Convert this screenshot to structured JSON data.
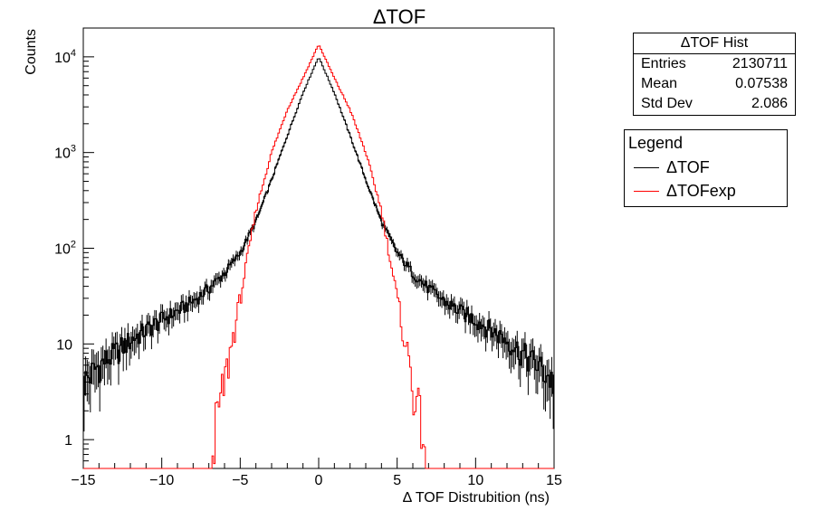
{
  "chart_data": {
    "type": "histogram",
    "title": "ΔTOF",
    "xlabel": "Δ TOF Distrubition (ns)",
    "ylabel": "Counts",
    "xlim": [
      -15,
      15
    ],
    "ylim": [
      0.5,
      20000
    ],
    "y_scale": "log",
    "x_ticks": [
      -15,
      -10,
      -5,
      0,
      5,
      10,
      15
    ],
    "x_tick_labels": [
      "−15",
      "−10",
      "−5",
      "0",
      "5",
      "10",
      "15"
    ],
    "y_ticks": [
      1,
      10,
      100,
      1000,
      10000
    ],
    "y_tick_labels": [
      {
        "base": "1",
        "exp": ""
      },
      {
        "base": "10",
        "exp": ""
      },
      {
        "base": "10",
        "exp": "2"
      },
      {
        "base": "10",
        "exp": "3"
      },
      {
        "base": "10",
        "exp": "4"
      }
    ],
    "grid": false,
    "series": [
      {
        "name": "ΔTOF",
        "color": "#000000",
        "x": [
          -15,
          -14,
          -13,
          -12,
          -11,
          -10,
          -9,
          -8,
          -7,
          -6,
          -5,
          -4,
          -3,
          -2,
          -1,
          0,
          1,
          2,
          3,
          4,
          5,
          6,
          7,
          8,
          9,
          10,
          11,
          12,
          13,
          14,
          15
        ],
        "y": [
          4,
          6,
          8,
          11,
          14,
          18,
          22,
          28,
          38,
          55,
          90,
          190,
          520,
          1500,
          4200,
          10000,
          4200,
          1500,
          520,
          190,
          90,
          55,
          38,
          28,
          22,
          18,
          14,
          11,
          8,
          6,
          4
        ]
      },
      {
        "name": "ΔTOFexp",
        "color": "#ff0000",
        "x": [
          -6.8,
          -6,
          -5,
          -4,
          -3,
          -2,
          -1,
          0,
          1,
          2,
          3,
          4,
          5,
          6,
          6.8
        ],
        "y": [
          1,
          4,
          30,
          250,
          1000,
          2800,
          6000,
          13500,
          6000,
          2800,
          1000,
          250,
          30,
          4,
          1
        ]
      }
    ]
  },
  "stats": {
    "title": "ΔTOF Hist",
    "rows": [
      {
        "label": "Entries",
        "value": "2130711"
      },
      {
        "label": "Mean",
        "value": "0.07538"
      },
      {
        "label": "Std Dev",
        "value": "2.086"
      }
    ]
  },
  "legend": {
    "title": "Legend",
    "items": [
      {
        "label": "ΔTOF",
        "color": "#000000"
      },
      {
        "label": "ΔTOFexp",
        "color": "#ff0000"
      }
    ]
  }
}
